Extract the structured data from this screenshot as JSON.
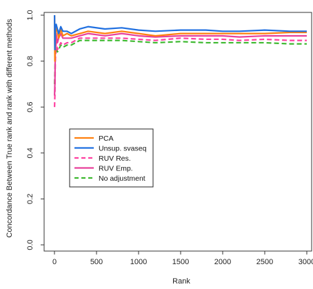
{
  "chart_data": {
    "type": "line",
    "title": "",
    "xlabel": "Rank",
    "ylabel": "Concordance Between True rank and rank with different methods",
    "xlim": [
      0,
      3000
    ],
    "ylim": [
      0,
      1
    ],
    "x_ticks": [
      "0",
      "500",
      "1000",
      "1500",
      "2000",
      "2500",
      "3000"
    ],
    "y_ticks": [
      "0.0",
      "0.2",
      "0.4",
      "0.6",
      "0.8",
      "1.0"
    ],
    "grid": false,
    "legend_position": "center-left",
    "series": [
      {
        "name": "PCA",
        "color": "#ff7f0e",
        "dash": "solid",
        "x": [
          1,
          5,
          10,
          20,
          35,
          50,
          75,
          100,
          150,
          200,
          300,
          400,
          600,
          800,
          1000,
          1200,
          1500,
          1800,
          2000,
          2200,
          2500,
          2800,
          3000
        ],
        "y": [
          1.0,
          0.8,
          0.9,
          0.95,
          0.93,
          0.9,
          0.94,
          0.91,
          0.92,
          0.91,
          0.92,
          0.93,
          0.92,
          0.93,
          0.92,
          0.91,
          0.92,
          0.92,
          0.92,
          0.92,
          0.92,
          0.925,
          0.925
        ]
      },
      {
        "name": "Unsup. svaseq",
        "color": "#1f6fe0",
        "dash": "solid",
        "x": [
          1,
          5,
          10,
          20,
          35,
          50,
          75,
          100,
          150,
          200,
          300,
          400,
          600,
          800,
          1000,
          1200,
          1500,
          1800,
          2000,
          2200,
          2500,
          2800,
          3000
        ],
        "y": [
          1.0,
          0.85,
          0.95,
          0.96,
          0.94,
          0.92,
          0.95,
          0.93,
          0.93,
          0.92,
          0.94,
          0.95,
          0.94,
          0.945,
          0.935,
          0.93,
          0.935,
          0.935,
          0.93,
          0.93,
          0.935,
          0.93,
          0.93
        ]
      },
      {
        "name": "RUV Res.",
        "color": "#ff3fa0",
        "dash": "dashed",
        "x": [
          1,
          5,
          10,
          20,
          35,
          50,
          75,
          100,
          150,
          200,
          300,
          400,
          600,
          800,
          1000,
          1200,
          1500,
          1800,
          2000,
          2200,
          2500,
          2800,
          3000
        ],
        "y": [
          0.6,
          0.65,
          0.8,
          0.88,
          0.85,
          0.86,
          0.88,
          0.87,
          0.88,
          0.88,
          0.9,
          0.9,
          0.9,
          0.9,
          0.895,
          0.89,
          0.9,
          0.895,
          0.895,
          0.89,
          0.895,
          0.89,
          0.89
        ]
      },
      {
        "name": "RUV Emp.",
        "color": "#e8409b",
        "dash": "solid",
        "x": [
          1,
          5,
          10,
          20,
          35,
          50,
          75,
          100,
          150,
          200,
          300,
          400,
          600,
          800,
          1000,
          1200,
          1500,
          1800,
          2000,
          2200,
          2500,
          2800,
          3000
        ],
        "y": [
          0.65,
          0.7,
          0.85,
          0.92,
          0.88,
          0.9,
          0.92,
          0.9,
          0.9,
          0.9,
          0.91,
          0.92,
          0.91,
          0.92,
          0.91,
          0.905,
          0.91,
          0.91,
          0.91,
          0.905,
          0.91,
          0.91,
          0.91
        ]
      },
      {
        "name": "No adjustment",
        "color": "#3cb82e",
        "dash": "dashed",
        "x": [
          1,
          5,
          10,
          20,
          35,
          50,
          75,
          100,
          150,
          200,
          300,
          400,
          600,
          800,
          1000,
          1200,
          1500,
          1800,
          2000,
          2200,
          2500,
          2800,
          3000
        ],
        "y": [
          0.7,
          0.75,
          0.82,
          0.86,
          0.84,
          0.85,
          0.87,
          0.86,
          0.87,
          0.87,
          0.89,
          0.89,
          0.89,
          0.89,
          0.885,
          0.88,
          0.885,
          0.88,
          0.88,
          0.88,
          0.88,
          0.875,
          0.875
        ]
      }
    ]
  }
}
